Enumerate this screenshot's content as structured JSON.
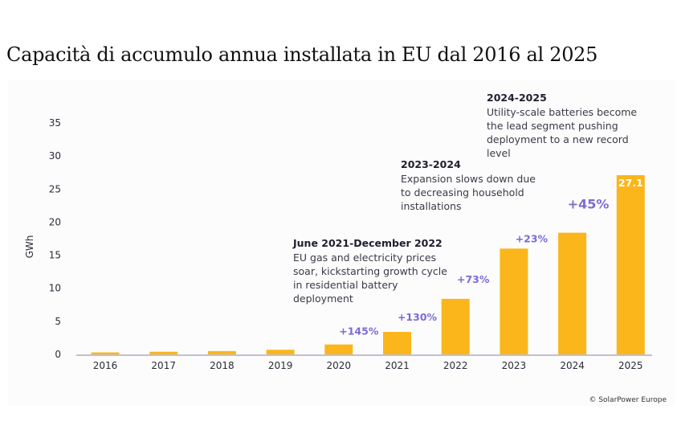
{
  "title": "Capacità di accumulo annua installata in EU dal 2016 al 2025",
  "chart_data": {
    "type": "bar",
    "title": "Capacità di accumulo annua installata in EU dal 2016 al 2025",
    "xlabel": "",
    "ylabel": "GWh",
    "ylim": [
      0,
      35
    ],
    "yticks": [
      0,
      5,
      10,
      15,
      20,
      25,
      30,
      35
    ],
    "categories": [
      "2016",
      "2017",
      "2018",
      "2019",
      "2020",
      "2021",
      "2022",
      "2023",
      "2024",
      "2025"
    ],
    "values": [
      0.3,
      0.4,
      0.5,
      0.7,
      1.5,
      3.4,
      8.4,
      16.0,
      18.4,
      27.1
    ],
    "bar_color": "#fbb61b",
    "growth_labels": [
      {
        "year": "2020",
        "text": "+145%"
      },
      {
        "year": "2021",
        "text": "+130%"
      },
      {
        "year": "2022",
        "text": "+73%"
      },
      {
        "year": "2023",
        "text": "+23%"
      },
      {
        "year": "2024",
        "text": "+45%"
      }
    ],
    "value_labels": [
      {
        "year": "2025",
        "text": "27.1"
      }
    ],
    "annotations": [
      {
        "heading": "June 2021-December 2022",
        "lines": [
          "EU gas and electricity prices",
          "soar, kickstarting growth cycle",
          "in residential battery",
          "deployment"
        ]
      },
      {
        "heading": "2023-2024",
        "lines": [
          "Expansion slows down due",
          "to decreasing household",
          "installations"
        ]
      },
      {
        "heading": "2024-2025",
        "lines": [
          "Utility-scale batteries become",
          "the lead segment pushing",
          "deployment to a new record",
          "level"
        ]
      }
    ],
    "grid": false
  },
  "credit": "© SolarPower Europe"
}
